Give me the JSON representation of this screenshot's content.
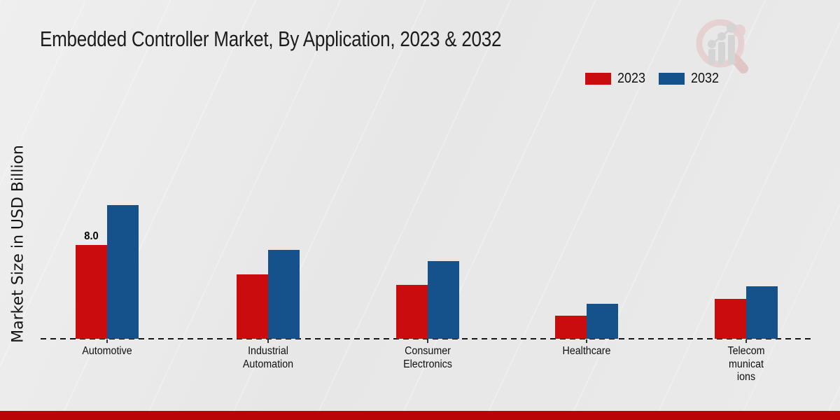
{
  "title": "Embedded Controller Market, By Application, 2023 & 2032",
  "colors": {
    "bar_2023": "#cb0c0e",
    "bar_2032": "#15518b",
    "footer_strip": "#b90505",
    "baseline": "#161616"
  },
  "legend": {
    "items": [
      {
        "label": "2023"
      },
      {
        "label": "2032"
      }
    ]
  },
  "watermark": "magnifier-bar-chart-logo",
  "chart_data": {
    "type": "bar",
    "title": "Embedded Controller Market, By Application, 2023 & 2032",
    "xlabel": "",
    "ylabel": "Market Size in USD Billion",
    "categories": [
      "Automotive",
      "Industrial Automation",
      "Consumer Electronics",
      "Healthcare",
      "Telecommunications"
    ],
    "category_label_lines": [
      [
        "Automotive"
      ],
      [
        "Industrial",
        "Automation"
      ],
      [
        "Consumer",
        "Electronics"
      ],
      [
        "Healthcare"
      ],
      [
        "Telecom",
        "municat",
        "ions"
      ]
    ],
    "series": [
      {
        "name": "2023",
        "color": "#cb0c0e",
        "values": [
          8.0,
          5.5,
          4.6,
          2.0,
          3.4
        ]
      },
      {
        "name": "2032",
        "color": "#15518b",
        "values": [
          11.4,
          7.6,
          6.6,
          3.0,
          4.5
        ]
      }
    ],
    "bar_labels": [
      {
        "series": "2023",
        "category": "Automotive",
        "text": "8.0"
      }
    ],
    "ylim": [
      0,
      12
    ],
    "grid": false,
    "legend_position": "top-right",
    "baseline_style": "dashed"
  }
}
